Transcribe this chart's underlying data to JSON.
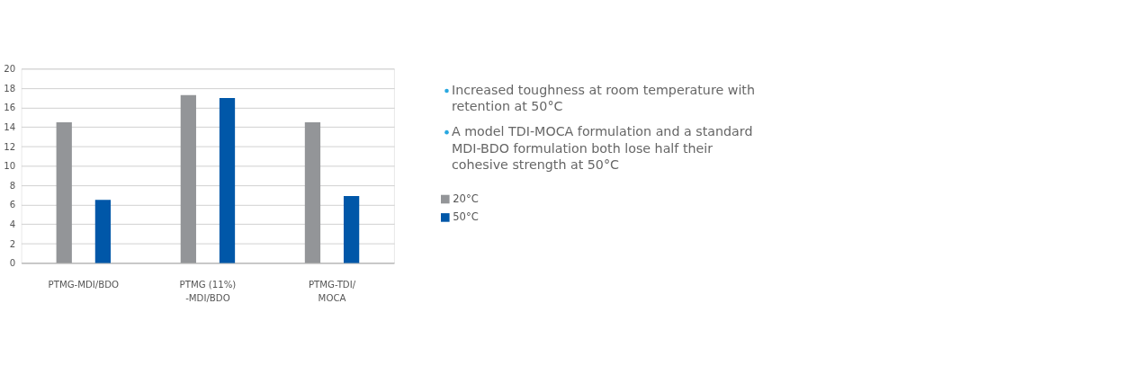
{
  "chart_data": {
    "type": "bar",
    "categories": [
      "PTMG-MDI/BDO",
      "PTMG (11%)\n-MDI/BDO",
      "PTMG-TDI/\nMOCA"
    ],
    "series": [
      {
        "name": "20°C",
        "color": "#939598",
        "values": [
          14.5,
          17.3,
          14.5
        ]
      },
      {
        "name": "50°C",
        "color": "#0057a8",
        "values": [
          6.5,
          17.0,
          6.9
        ]
      }
    ],
    "ylim": [
      0,
      20
    ],
    "yticks": [
      0,
      2,
      4,
      6,
      8,
      10,
      12,
      14,
      16,
      18,
      20
    ],
    "grid": "y",
    "legend": "right",
    "annotations": [
      "Increased toughness at room temperature with retention at 50°C",
      "A model TDI-MOCA formulation and a standard MDI-BDO formulation both lose half their cohesive strength at 50°C"
    ]
  }
}
